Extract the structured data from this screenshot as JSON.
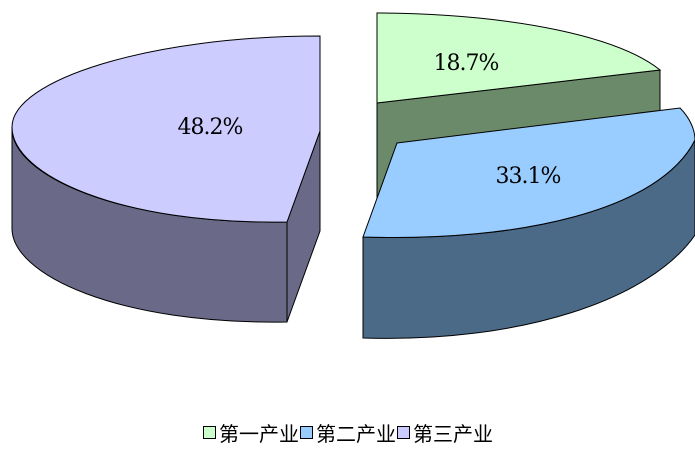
{
  "chart_data": {
    "type": "pie",
    "style": "3d-exploded",
    "title": "",
    "legend_position": "bottom",
    "slices": [
      {
        "name": "第一产业",
        "value": 18.7,
        "label": "18.7%",
        "color": "#ccffcc",
        "side_color": "#6a8a6a"
      },
      {
        "name": "第二产业",
        "value": 33.1,
        "label": "33.1%",
        "color": "#99ccff",
        "side_color": "#4a6a88"
      },
      {
        "name": "第三产业",
        "value": 48.2,
        "label": "48.2%",
        "color": "#ccccff",
        "side_color": "#6a6a88"
      }
    ]
  }
}
